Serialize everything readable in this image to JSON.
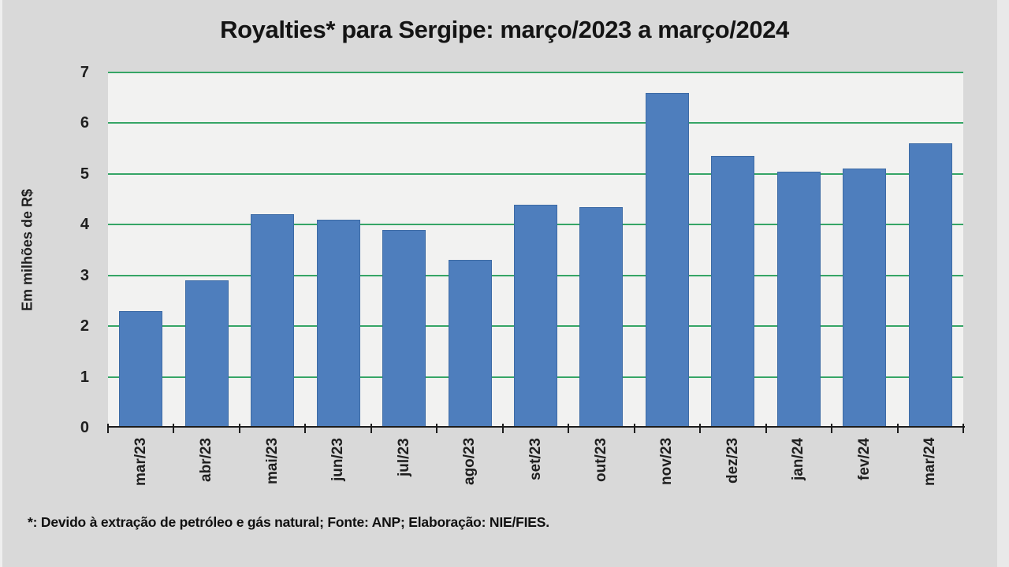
{
  "slide": {
    "title": "Royalties* para Sergipe: março/2023 a março/2024",
    "footnote": "*: Devido à extração de petróleo e gás natural; Fonte: ANP; Elaboração: NIE/FIES.",
    "background": "#d9d9d9"
  },
  "chart_data": {
    "type": "bar",
    "title": "Royalties* para Sergipe: março/2023 a março/2024",
    "xlabel": "",
    "ylabel": "Em milhões de R$",
    "categories": [
      "mar/23",
      "abr/23",
      "mai/23",
      "jun/23",
      "jul/23",
      "ago/23",
      "set/23",
      "out/23",
      "nov/23",
      "dez/23",
      "jan/24",
      "fev/24",
      "mar/24"
    ],
    "values": [
      2.3,
      2.9,
      4.2,
      4.1,
      3.9,
      3.3,
      4.4,
      4.35,
      6.6,
      5.35,
      5.05,
      5.1,
      5.6
    ],
    "ylim": [
      0,
      7
    ],
    "yticks": [
      0,
      1,
      2,
      3,
      4,
      5,
      6,
      7
    ],
    "grid": true,
    "gridline_orientation": "horizontal",
    "legend": false,
    "footnote": "*: Devido à extração de petróleo e gás natural; Fonte: ANP; Elaboração: NIE/FIES.",
    "colors": {
      "bar_fill": "#4e7ebd",
      "bar_border": "#3d6ba5",
      "gridline": "#36a566",
      "plot_bg": "#f2f2f1",
      "slide_bg": "#d9d9d9",
      "axis_line": "#1c1c1c",
      "text": "#1f1f1f"
    }
  }
}
